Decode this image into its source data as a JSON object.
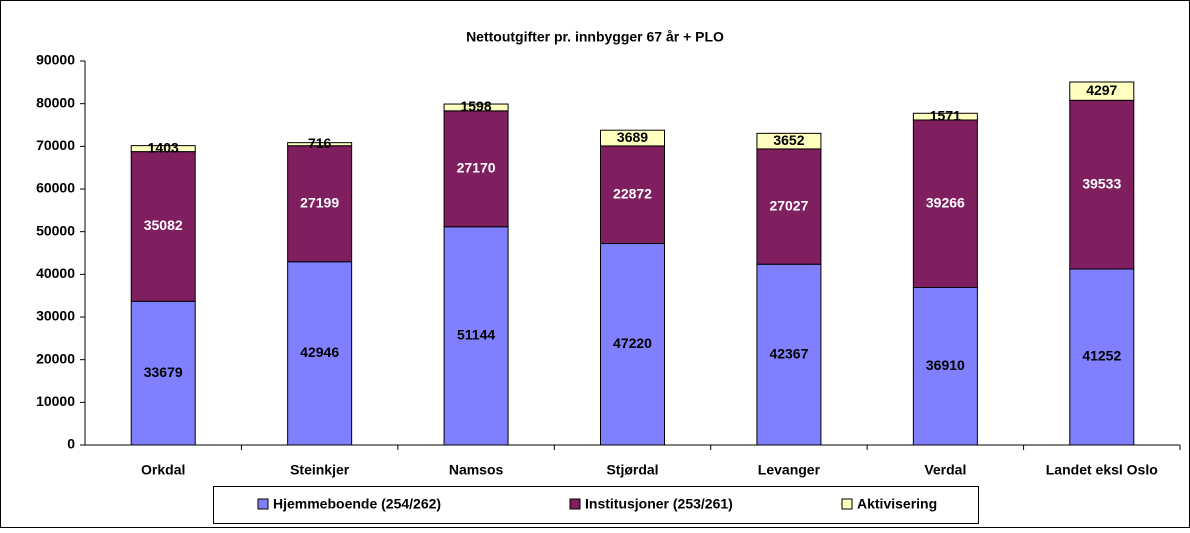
{
  "chart_data": {
    "type": "stacked_bar",
    "title": "Nettoutgifter pr. innbygger 67 år + PLO",
    "categories": [
      "Orkdal",
      "Steinkjer",
      "Namsos",
      "Stjørdal",
      "Levanger",
      "Verdal",
      "Landet eksl Oslo"
    ],
    "series": [
      {
        "name": "Hjemmeboende (254/262)",
        "color": "#8080ff",
        "label_color": "#000000",
        "values": [
          33679,
          42946,
          51144,
          47220,
          42367,
          36910,
          41252
        ]
      },
      {
        "name": "Institusjoner (253/261)",
        "color": "#7f1f5f",
        "label_color": "#ffffff",
        "values": [
          35082,
          27199,
          27170,
          22872,
          27027,
          39266,
          39533
        ]
      },
      {
        "name": "Aktivisering",
        "color": "#ffffc0",
        "label_color": "#000000",
        "values": [
          1403,
          716,
          1598,
          3689,
          3652,
          1571,
          4297
        ]
      }
    ],
    "ylim": [
      0,
      90000
    ],
    "yticks": [
      0,
      10000,
      20000,
      30000,
      40000,
      50000,
      60000,
      70000,
      80000,
      90000
    ],
    "legend": "bottom"
  }
}
